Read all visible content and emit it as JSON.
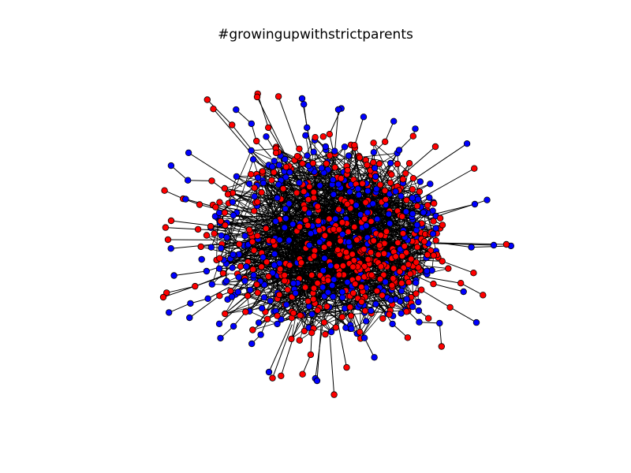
{
  "figure": {
    "title": "#growingupwithstrictparents"
  },
  "graph": {
    "node_colors": [
      "#ff0000",
      "#0000ff"
    ],
    "node_color_names": [
      "red",
      "blue"
    ],
    "edge_color": "#000000",
    "node_outline_color": "#000000",
    "background": "#ffffff"
  }
}
